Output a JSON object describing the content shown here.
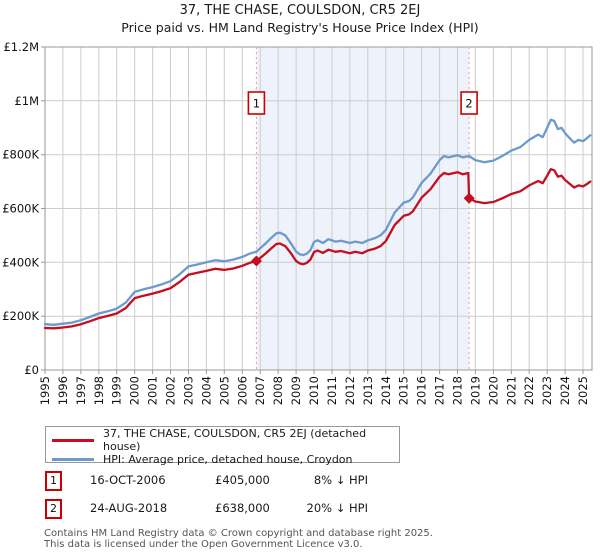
{
  "title": "37, THE CHASE, COULSDON, CR5 2EJ",
  "subtitle": "Price paid vs. HM Land Registry's House Price Index (HPI)",
  "legend": {
    "series1": "37, THE CHASE, COULSDON, CR5 2EJ (detached house)",
    "series2": "HPI: Average price, detached house, Croydon"
  },
  "annotations": [
    {
      "num": "1",
      "date": "16-OCT-2006",
      "price": "£405,000",
      "hpi": "8% ↓ HPI"
    },
    {
      "num": "2",
      "date": "24-AUG-2018",
      "price": "£638,000",
      "hpi": "20% ↓ HPI"
    }
  ],
  "footer": {
    "line1": "Contains HM Land Registry data © Crown copyright and database right 2025.",
    "line2": "This data is licensed under the Open Government Licence v3.0."
  },
  "colors": {
    "price": "#c50e1f",
    "hpi": "#6d9acc",
    "band": "#eef2fa",
    "sale_dash": "#f29a9a",
    "accent_red": "#cc0000",
    "grid": "#cccccc",
    "border": "#999999"
  },
  "chart_data": {
    "type": "line",
    "title": "Price paid vs. HM Land Registry's House Price Index (HPI)",
    "xlim": [
      1995,
      2025.5
    ],
    "ylim": [
      0,
      1200000
    ],
    "x_ticks": [
      1995,
      1996,
      1997,
      1998,
      1999,
      2000,
      2001,
      2002,
      2003,
      2004,
      2005,
      2006,
      2007,
      2008,
      2009,
      2010,
      2011,
      2012,
      2013,
      2014,
      2015,
      2016,
      2017,
      2018,
      2019,
      2020,
      2021,
      2022,
      2023,
      2024,
      2025
    ],
    "y_ticks": [
      {
        "value": 0,
        "label": "£0"
      },
      {
        "value": 200000,
        "label": "£200K"
      },
      {
        "value": 400000,
        "label": "£400K"
      },
      {
        "value": 600000,
        "label": "£600K"
      },
      {
        "value": 800000,
        "label": "£800K"
      },
      {
        "value": 1000000,
        "label": "£1M"
      },
      {
        "value": 1200000,
        "label": "£1.2M"
      }
    ],
    "band": [
      2006.79,
      2018.65
    ],
    "sales": [
      {
        "num": "1",
        "x": 2006.79,
        "y": 405000,
        "date": "16-OCT-2006",
        "price_gbp": 405000,
        "pct_vs_hpi": "8% below HPI"
      },
      {
        "num": "2",
        "x": 2018.65,
        "y": 638000,
        "date": "24-AUG-2018",
        "price_gbp": 638000,
        "pct_vs_hpi": "20% below HPI"
      }
    ],
    "series": [
      {
        "name": "HPI: Average price, detached house, Croydon",
        "color_key": "hpi",
        "points": [
          [
            1995.0,
            170000
          ],
          [
            1995.5,
            168000
          ],
          [
            1996.0,
            172000
          ],
          [
            1996.5,
            176000
          ],
          [
            1997.0,
            185000
          ],
          [
            1997.5,
            197000
          ],
          [
            1998.0,
            210000
          ],
          [
            1998.5,
            218000
          ],
          [
            1999.0,
            228000
          ],
          [
            1999.5,
            250000
          ],
          [
            2000.0,
            290000
          ],
          [
            2000.5,
            300000
          ],
          [
            2001.0,
            308000
          ],
          [
            2001.5,
            318000
          ],
          [
            2002.0,
            330000
          ],
          [
            2002.5,
            355000
          ],
          [
            2003.0,
            385000
          ],
          [
            2003.5,
            392000
          ],
          [
            2004.0,
            400000
          ],
          [
            2004.5,
            408000
          ],
          [
            2005.0,
            404000
          ],
          [
            2005.5,
            410000
          ],
          [
            2006.0,
            420000
          ],
          [
            2006.4,
            432000
          ],
          [
            2006.79,
            440000
          ],
          [
            2007.0,
            452000
          ],
          [
            2007.3,
            470000
          ],
          [
            2007.6,
            490000
          ],
          [
            2007.9,
            508000
          ],
          [
            2008.1,
            510000
          ],
          [
            2008.4,
            500000
          ],
          [
            2008.7,
            472000
          ],
          [
            2009.0,
            440000
          ],
          [
            2009.2,
            430000
          ],
          [
            2009.4,
            427000
          ],
          [
            2009.6,
            432000
          ],
          [
            2009.8,
            445000
          ],
          [
            2010.0,
            476000
          ],
          [
            2010.2,
            482000
          ],
          [
            2010.5,
            472000
          ],
          [
            2010.8,
            486000
          ],
          [
            2011.2,
            477000
          ],
          [
            2011.5,
            480000
          ],
          [
            2012.0,
            472000
          ],
          [
            2012.3,
            477000
          ],
          [
            2012.7,
            472000
          ],
          [
            2013.0,
            482000
          ],
          [
            2013.4,
            490000
          ],
          [
            2013.7,
            500000
          ],
          [
            2014.0,
            520000
          ],
          [
            2014.5,
            585000
          ],
          [
            2015.0,
            622000
          ],
          [
            2015.3,
            628000
          ],
          [
            2015.5,
            640000
          ],
          [
            2016.0,
            695000
          ],
          [
            2016.5,
            730000
          ],
          [
            2017.0,
            780000
          ],
          [
            2017.25,
            795000
          ],
          [
            2017.5,
            790000
          ],
          [
            2018.0,
            798000
          ],
          [
            2018.3,
            790000
          ],
          [
            2018.65,
            795000
          ],
          [
            2019.0,
            780000
          ],
          [
            2019.5,
            772000
          ],
          [
            2020.0,
            778000
          ],
          [
            2020.5,
            795000
          ],
          [
            2021.0,
            815000
          ],
          [
            2021.5,
            828000
          ],
          [
            2022.0,
            855000
          ],
          [
            2022.5,
            875000
          ],
          [
            2022.75,
            865000
          ],
          [
            2023.0,
            900000
          ],
          [
            2023.2,
            930000
          ],
          [
            2023.4,
            925000
          ],
          [
            2023.6,
            895000
          ],
          [
            2023.8,
            900000
          ],
          [
            2024.0,
            880000
          ],
          [
            2024.3,
            858000
          ],
          [
            2024.5,
            845000
          ],
          [
            2024.75,
            855000
          ],
          [
            2025.0,
            850000
          ],
          [
            2025.2,
            860000
          ],
          [
            2025.4,
            872000
          ]
        ]
      },
      {
        "name": "37, THE CHASE, COULSDON, CR5 2EJ (detached house)",
        "color_key": "price",
        "points": [
          [
            1995.0,
            156000
          ],
          [
            1995.5,
            155000
          ],
          [
            1996.0,
            158000
          ],
          [
            1996.5,
            162000
          ],
          [
            1997.0,
            170000
          ],
          [
            1997.5,
            181000
          ],
          [
            1998.0,
            193000
          ],
          [
            1998.5,
            201000
          ],
          [
            1999.0,
            210000
          ],
          [
            1999.5,
            230000
          ],
          [
            2000.0,
            267000
          ],
          [
            2000.5,
            276000
          ],
          [
            2001.0,
            284000
          ],
          [
            2001.5,
            293000
          ],
          [
            2002.0,
            304000
          ],
          [
            2002.5,
            327000
          ],
          [
            2003.0,
            354000
          ],
          [
            2003.5,
            361000
          ],
          [
            2004.0,
            368000
          ],
          [
            2004.5,
            376000
          ],
          [
            2005.0,
            372000
          ],
          [
            2005.5,
            377000
          ],
          [
            2006.0,
            387000
          ],
          [
            2006.4,
            398000
          ],
          [
            2006.79,
            405000
          ],
          [
            2007.0,
            416000
          ],
          [
            2007.3,
            433000
          ],
          [
            2007.6,
            451000
          ],
          [
            2007.9,
            468000
          ],
          [
            2008.1,
            470000
          ],
          [
            2008.4,
            460000
          ],
          [
            2008.7,
            435000
          ],
          [
            2009.0,
            405000
          ],
          [
            2009.2,
            396000
          ],
          [
            2009.4,
            393000
          ],
          [
            2009.6,
            398000
          ],
          [
            2009.8,
            410000
          ],
          [
            2010.0,
            438000
          ],
          [
            2010.2,
            444000
          ],
          [
            2010.5,
            435000
          ],
          [
            2010.8,
            447000
          ],
          [
            2011.2,
            439000
          ],
          [
            2011.5,
            442000
          ],
          [
            2012.0,
            434000
          ],
          [
            2012.3,
            439000
          ],
          [
            2012.7,
            434000
          ],
          [
            2013.0,
            444000
          ],
          [
            2013.4,
            451000
          ],
          [
            2013.7,
            460000
          ],
          [
            2014.0,
            479000
          ],
          [
            2014.5,
            539000
          ],
          [
            2015.0,
            573000
          ],
          [
            2015.3,
            578000
          ],
          [
            2015.5,
            589000
          ],
          [
            2016.0,
            640000
          ],
          [
            2016.5,
            672000
          ],
          [
            2017.0,
            718000
          ],
          [
            2017.25,
            732000
          ],
          [
            2017.5,
            727000
          ],
          [
            2018.0,
            735000
          ],
          [
            2018.3,
            727000
          ],
          [
            2018.6,
            732000
          ],
          [
            2018.65,
            638000
          ],
          [
            2019.0,
            626000
          ],
          [
            2019.5,
            620000
          ],
          [
            2020.0,
            624000
          ],
          [
            2020.5,
            638000
          ],
          [
            2021.0,
            654000
          ],
          [
            2021.5,
            664000
          ],
          [
            2022.0,
            686000
          ],
          [
            2022.5,
            702000
          ],
          [
            2022.75,
            694000
          ],
          [
            2023.0,
            722000
          ],
          [
            2023.2,
            746000
          ],
          [
            2023.4,
            742000
          ],
          [
            2023.6,
            718000
          ],
          [
            2023.8,
            722000
          ],
          [
            2024.0,
            706000
          ],
          [
            2024.3,
            689000
          ],
          [
            2024.5,
            678000
          ],
          [
            2024.75,
            686000
          ],
          [
            2025.0,
            682000
          ],
          [
            2025.2,
            690000
          ],
          [
            2025.4,
            700000
          ]
        ]
      }
    ]
  }
}
